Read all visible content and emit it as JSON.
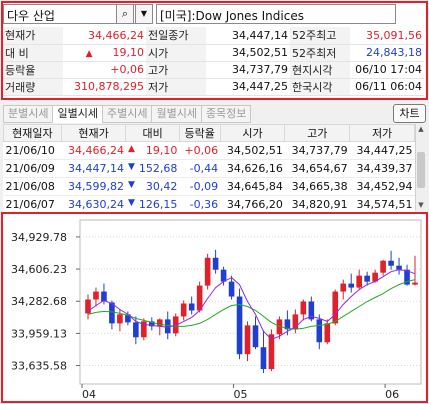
{
  "search": {
    "value": "다우 산업",
    "search_icon": "search-icon",
    "dropdown_icon": "chevron-down-icon"
  },
  "symbol": "[미국]:Dow Jones Indices",
  "quote": {
    "rows": [
      {
        "l1": "현재가",
        "v1": "34,466,24",
        "l2": "전일종가",
        "v2": "34,447,14",
        "l3": "52주최고",
        "v3": "35,091,56"
      },
      {
        "l1": "대  비",
        "v1": "19,10",
        "l2": "시가",
        "v2": "34,502,51",
        "l3": "52주최저",
        "v3": "24,843,18"
      },
      {
        "l1": "등락율",
        "v1": "+0,06",
        "l2": "고가",
        "v2": "34,737,79",
        "l3": "현지시각",
        "v3": "06/10 17:04"
      },
      {
        "l1": "거래량",
        "v1": "310,878,295",
        "l2": "저가",
        "v2": "34,447,25",
        "l3": "한국시각",
        "v3": "06/11 06:04"
      }
    ]
  },
  "tabs": [
    "분별시세",
    "일별시세",
    "주별시세",
    "월별시세",
    "종목정보"
  ],
  "chart_button": "차트",
  "daily": {
    "headers": [
      "현재일자",
      "현재가",
      "대비",
      "등락율",
      "시가",
      "고가",
      "저가"
    ],
    "rows": [
      {
        "date": "21/06/10",
        "price": "34,466,24",
        "dir": "up",
        "change": "19,10",
        "rate": "+0,06",
        "open": "34,502,51",
        "high": "34,737,79",
        "low": "34,447,25"
      },
      {
        "date": "21/06/09",
        "price": "34,447,14",
        "dir": "down",
        "change": "152,68",
        "rate": "-0,44",
        "open": "34,626,16",
        "high": "34,654,67",
        "low": "34,439,37"
      },
      {
        "date": "21/06/08",
        "price": "34,599,82",
        "dir": "down",
        "change": "30,42",
        "rate": "-0,09",
        "open": "34,645,84",
        "high": "34,665,38",
        "low": "34,452,94"
      },
      {
        "date": "21/06/07",
        "price": "34,630,24",
        "dir": "down",
        "change": "126,15",
        "rate": "-0,36",
        "open": "34,766,20",
        "high": "34,820,91",
        "low": "34,574,51"
      }
    ]
  },
  "colors": {
    "up": "#e0202a",
    "down": "#1f3fd0",
    "ma_short": "#8a2be2",
    "ma_long": "#22aa22",
    "frame": "#e0202a"
  },
  "chart_data": {
    "type": "candlestick",
    "yticks": [
      "34,929.78",
      "34,606.23",
      "34,282.68",
      "33,959.13",
      "33,635.58"
    ],
    "ytick_values": [
      34929.78,
      34606.23,
      34282.68,
      33959.13,
      33635.58
    ],
    "xlabels": [
      "04",
      "05",
      "06"
    ],
    "ylim": [
      33450,
      35100
    ],
    "candles": [
      [
        34160,
        34350,
        34100,
        34300
      ],
      [
        34300,
        34420,
        34230,
        34380
      ],
      [
        34380,
        34460,
        34250,
        34280
      ],
      [
        34270,
        34290,
        34000,
        34060
      ],
      [
        34060,
        34200,
        33980,
        34150
      ],
      [
        34150,
        34180,
        34040,
        34070
      ],
      [
        34070,
        34130,
        33850,
        33920
      ],
      [
        33920,
        34110,
        33890,
        34080
      ],
      [
        34080,
        34120,
        33990,
        34030
      ],
      [
        34030,
        34110,
        33940,
        34100
      ],
      [
        34100,
        34180,
        33900,
        33960
      ],
      [
        33960,
        34160,
        33930,
        34130
      ],
      [
        34130,
        34290,
        34090,
        34260
      ],
      [
        34260,
        34330,
        34150,
        34190
      ],
      [
        34190,
        34480,
        34170,
        34440
      ],
      [
        34440,
        34760,
        34400,
        34720
      ],
      [
        34720,
        34800,
        34560,
        34600
      ],
      [
        34600,
        34630,
        34440,
        34480
      ],
      [
        34480,
        34540,
        34300,
        34330
      ],
      [
        34330,
        34410,
        33700,
        33750
      ],
      [
        33750,
        34080,
        33680,
        34040
      ],
      [
        34040,
        34130,
        33800,
        33820
      ],
      [
        33820,
        33990,
        33560,
        33600
      ],
      [
        33600,
        34000,
        33580,
        33950
      ],
      [
        33950,
        34130,
        33900,
        34100
      ],
      [
        34100,
        34190,
        33940,
        34000
      ],
      [
        34000,
        34200,
        33960,
        34150
      ],
      [
        34150,
        34300,
        34090,
        34280
      ],
      [
        34280,
        34330,
        34080,
        34100
      ],
      [
        34100,
        34150,
        33800,
        33870
      ],
      [
        33870,
        34100,
        33850,
        34060
      ],
      [
        34060,
        34400,
        34040,
        34380
      ],
      [
        34380,
        34500,
        34300,
        34460
      ],
      [
        34460,
        34560,
        34370,
        34420
      ],
      [
        34420,
        34600,
        34400,
        34540
      ],
      [
        34540,
        34580,
        34440,
        34480
      ],
      [
        34480,
        34600,
        34470,
        34570
      ],
      [
        34570,
        34700,
        34540,
        34690
      ],
      [
        34690,
        34790,
        34600,
        34640
      ],
      [
        34640,
        34720,
        34550,
        34600
      ],
      [
        34600,
        34650,
        34440,
        34450
      ],
      [
        34450,
        34740,
        34440,
        34470
      ]
    ],
    "ma_short": [
      34180,
      34240,
      34290,
      34260,
      34200,
      34150,
      34080,
      34050,
      34040,
      34030,
      34020,
      34040,
      34080,
      34120,
      34190,
      34310,
      34420,
      34480,
      34520,
      34450,
      34280,
      34150,
      33980,
      33900,
      33930,
      33980,
      34020,
      34100,
      34130,
      34110,
      34080,
      34150,
      34250,
      34330,
      34400,
      34450,
      34480,
      34530,
      34580,
      34600,
      34590,
      34560
    ],
    "ma_long": [
      34150,
      34170,
      34180,
      34175,
      34160,
      34140,
      34110,
      34090,
      34070,
      34050,
      34040,
      34030,
      34030,
      34040,
      34060,
      34100,
      34150,
      34200,
      34240,
      34250,
      34230,
      34190,
      34130,
      34070,
      34030,
      34010,
      34000,
      34010,
      34030,
      34040,
      34050,
      34080,
      34130,
      34180,
      34230,
      34280,
      34320,
      34360,
      34410,
      34450,
      34480,
      34500
    ]
  }
}
